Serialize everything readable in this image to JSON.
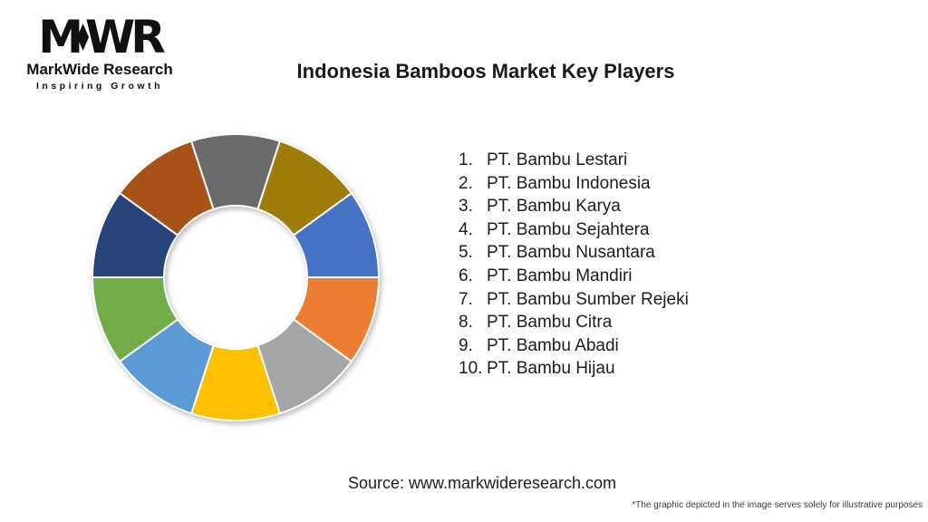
{
  "logo": {
    "letters": {
      "m": "M",
      "w": "W",
      "r": "R"
    },
    "name": "MarkWide Research",
    "tagline": "Inspiring Growth",
    "color": "#111111"
  },
  "header": {
    "title": "Indonesia Bamboos Market Key Players"
  },
  "chart_data": {
    "type": "pie",
    "subtype": "donut",
    "title": "Indonesia Bamboos Market Key Players",
    "categories": [
      "PT. Bambu Lestari",
      "PT. Bambu Indonesia",
      "PT. Bambu Karya",
      "PT. Bambu Sejahtera",
      "PT. Bambu Nusantara",
      "PT. Bambu Mandiri",
      "PT. Bambu Sumber Rejeki",
      "PT. Bambu Citra",
      "PT. Bambu Abadi",
      "PT. Bambu Hijau"
    ],
    "values": [
      10,
      10,
      10,
      10,
      10,
      10,
      10,
      10,
      10,
      10
    ],
    "colors": [
      "#4472C4",
      "#ED7D31",
      "#A5A5A5",
      "#FFC000",
      "#5B9BD5",
      "#70AD47",
      "#27457B",
      "#A8521A",
      "#6A6A6A",
      "#9E7C07"
    ],
    "start_angle_deg": 54,
    "inner_radius_ratio": 0.5,
    "slice_border_color": "#FFFFFF",
    "slice_border_width": 2,
    "legend_position": "right",
    "legend_style": "numbered-list",
    "data_labels": "none"
  },
  "players": {
    "items": [
      {
        "num": "1.",
        "name": "PT. Bambu Lestari"
      },
      {
        "num": "2.",
        "name": "PT. Bambu Indonesia"
      },
      {
        "num": "3.",
        "name": "PT. Bambu Karya"
      },
      {
        "num": "4.",
        "name": "PT. Bambu Sejahtera"
      },
      {
        "num": "5.",
        "name": "PT. Bambu Nusantara"
      },
      {
        "num": "6.",
        "name": "PT. Bambu Mandiri"
      },
      {
        "num": "7.",
        "name": "PT. Bambu Sumber Rejeki"
      },
      {
        "num": "8.",
        "name": "PT. Bambu Citra"
      },
      {
        "num": "9.",
        "name": "PT. Bambu Abadi"
      },
      {
        "num": "10.",
        "name": "PT. Bambu Hijau"
      }
    ]
  },
  "footer": {
    "source": "Source: www.markwideresearch.com",
    "disclaimer": "*The graphic depicted in the image serves solely for illustrative purposes"
  }
}
